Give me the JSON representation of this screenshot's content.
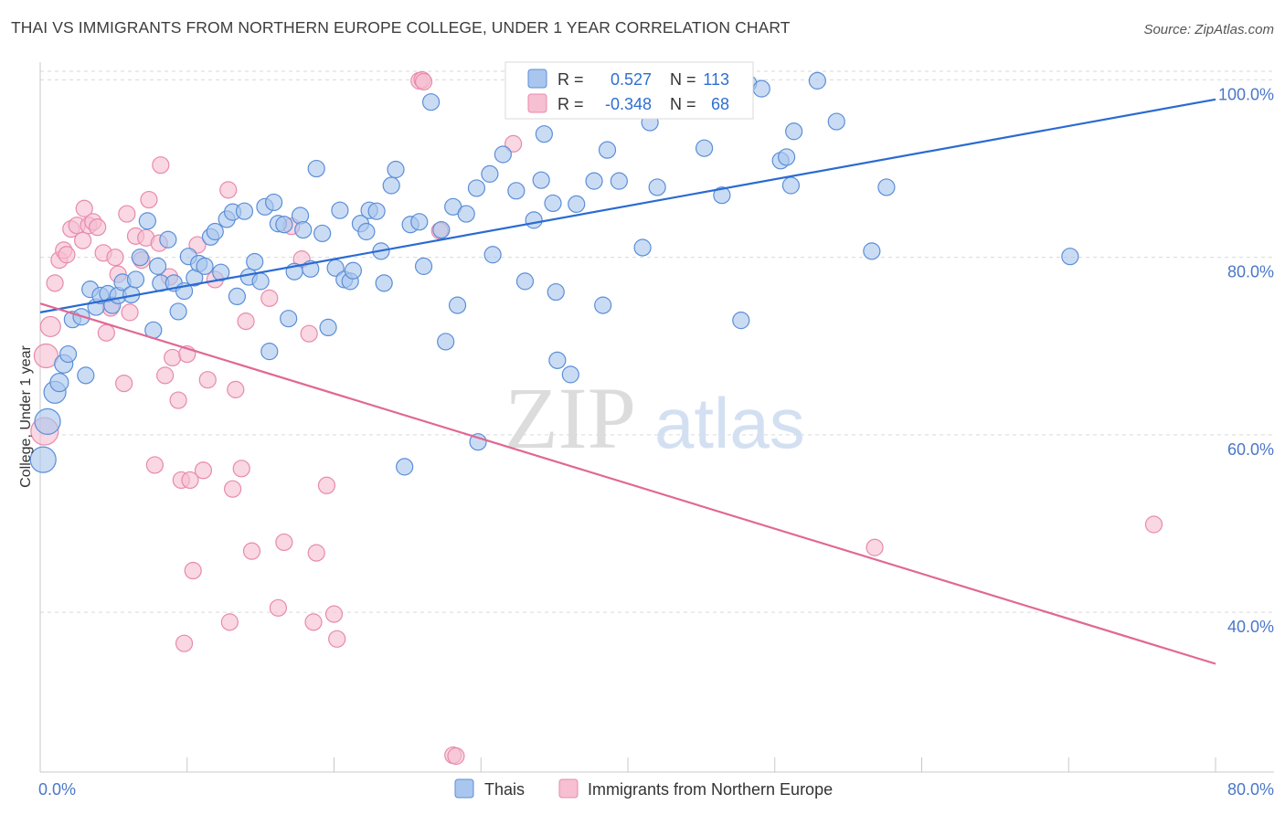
{
  "title": "THAI VS IMMIGRANTS FROM NORTHERN EUROPE COLLEGE, UNDER 1 YEAR CORRELATION CHART",
  "source": "Source: ZipAtlas.com",
  "watermark": {
    "zip": "ZIP",
    "atlas": "atlas"
  },
  "colors": {
    "series1_fill": "#a9c6ee",
    "series1_stroke": "#5b8ed8",
    "series1_line": "#2a6bd1",
    "series2_fill": "#f6bfd2",
    "series2_stroke": "#e88aac",
    "series2_line": "#e06894",
    "axis_label": "#4a77c9",
    "grid": "#d9d9d9"
  },
  "legend": {
    "rows": [
      {
        "r_label": "R =",
        "r_value": "0.527",
        "n_label": "N =",
        "n_value": "113"
      },
      {
        "r_label": "R =",
        "r_value": "-0.348",
        "n_label": "N =",
        "n_value": "68"
      }
    ]
  },
  "chart_data": {
    "type": "scatter",
    "xlabel": "",
    "ylabel": "College, Under 1 year",
    "xlim": [
      0,
      80
    ],
    "ylim": [
      22,
      102
    ],
    "x_tick_labels": [
      "0.0%",
      "80.0%"
    ],
    "y_ticks": [
      40,
      60,
      80,
      100
    ],
    "y_tick_labels": [
      "40.0%",
      "60.0%",
      "80.0%",
      "100.0%"
    ],
    "grid": true,
    "legend_position": "top-center",
    "series": [
      {
        "name": "Thais",
        "trend": {
          "x": [
            0,
            80
          ],
          "y": [
            73.8,
            97.8
          ]
        },
        "points": [
          [
            0.2,
            57.2,
            14
          ],
          [
            0.5,
            61.5,
            14
          ],
          [
            1.0,
            64.8,
            12
          ],
          [
            1.3,
            65.9,
            10
          ],
          [
            1.6,
            68.0,
            10
          ],
          [
            1.9,
            69.1,
            9
          ],
          [
            2.2,
            73.0,
            9
          ],
          [
            2.8,
            73.3,
            9
          ],
          [
            3.1,
            66.7,
            9
          ],
          [
            3.4,
            76.4,
            9
          ],
          [
            3.8,
            74.4,
            9
          ],
          [
            4.1,
            75.7,
            9
          ],
          [
            4.6,
            75.9,
            9
          ],
          [
            4.9,
            74.6,
            9
          ],
          [
            5.3,
            75.7,
            9
          ],
          [
            5.6,
            77.2,
            9
          ],
          [
            6.2,
            75.8,
            9
          ],
          [
            6.5,
            77.5,
            9
          ],
          [
            6.8,
            80.0,
            9
          ],
          [
            7.3,
            84.1,
            9
          ],
          [
            7.7,
            71.8,
            9
          ],
          [
            8.0,
            79.0,
            9
          ],
          [
            8.2,
            77.1,
            9
          ],
          [
            8.7,
            82.0,
            9
          ],
          [
            9.1,
            77.1,
            9
          ],
          [
            9.4,
            73.9,
            9
          ],
          [
            9.8,
            76.2,
            9
          ],
          [
            10.1,
            80.1,
            9
          ],
          [
            10.5,
            77.7,
            9
          ],
          [
            10.8,
            79.3,
            9
          ],
          [
            11.2,
            79.0,
            9
          ],
          [
            11.6,
            82.3,
            9
          ],
          [
            11.9,
            82.9,
            9
          ],
          [
            12.3,
            78.3,
            9
          ],
          [
            12.7,
            84.3,
            9
          ],
          [
            13.1,
            85.1,
            9
          ],
          [
            13.4,
            75.6,
            9
          ],
          [
            13.9,
            85.2,
            9
          ],
          [
            14.2,
            77.8,
            9
          ],
          [
            14.6,
            79.5,
            9
          ],
          [
            15.0,
            77.3,
            9
          ],
          [
            15.3,
            85.7,
            9
          ],
          [
            15.6,
            69.4,
            9
          ],
          [
            15.9,
            86.2,
            9
          ],
          [
            16.2,
            83.8,
            9
          ],
          [
            16.6,
            83.7,
            9
          ],
          [
            16.9,
            73.1,
            9
          ],
          [
            17.3,
            78.4,
            9
          ],
          [
            17.7,
            84.7,
            9
          ],
          [
            17.9,
            83.1,
            9
          ],
          [
            18.4,
            78.7,
            9
          ],
          [
            18.8,
            90.0,
            9
          ],
          [
            19.2,
            82.7,
            9
          ],
          [
            19.6,
            72.1,
            9
          ],
          [
            20.1,
            78.8,
            9
          ],
          [
            20.4,
            85.3,
            9
          ],
          [
            20.7,
            77.5,
            9
          ],
          [
            21.1,
            77.3,
            9
          ],
          [
            21.3,
            78.5,
            9
          ],
          [
            21.8,
            83.8,
            9
          ],
          [
            22.2,
            82.9,
            9
          ],
          [
            22.4,
            85.3,
            9
          ],
          [
            22.9,
            85.2,
            9
          ],
          [
            23.2,
            80.7,
            9
          ],
          [
            23.4,
            77.1,
            9
          ],
          [
            23.9,
            88.1,
            9
          ],
          [
            24.2,
            89.9,
            9
          ],
          [
            24.8,
            56.4,
            9
          ],
          [
            25.2,
            83.7,
            9
          ],
          [
            25.8,
            84.0,
            9
          ],
          [
            26.1,
            79.0,
            9
          ],
          [
            26.6,
            97.5,
            9
          ],
          [
            27.3,
            83.1,
            9
          ],
          [
            27.6,
            70.5,
            9
          ],
          [
            28.1,
            85.7,
            9
          ],
          [
            28.4,
            74.6,
            9
          ],
          [
            29.0,
            84.9,
            9
          ],
          [
            29.8,
            59.2,
            9
          ],
          [
            29.7,
            87.8,
            9
          ],
          [
            30.6,
            89.4,
            9
          ],
          [
            30.8,
            80.3,
            9
          ],
          [
            31.5,
            91.6,
            9
          ],
          [
            32.4,
            87.5,
            9
          ],
          [
            33.0,
            77.3,
            9
          ],
          [
            33.6,
            84.2,
            9
          ],
          [
            34.1,
            88.7,
            9
          ],
          [
            34.3,
            93.9,
            9
          ],
          [
            34.9,
            86.1,
            9
          ],
          [
            35.1,
            76.1,
            9
          ],
          [
            35.2,
            68.4,
            9
          ],
          [
            36.1,
            66.8,
            9
          ],
          [
            36.5,
            86.0,
            9
          ],
          [
            37.7,
            88.6,
            9
          ],
          [
            38.3,
            74.6,
            9
          ],
          [
            38.6,
            92.1,
            9
          ],
          [
            39.4,
            88.6,
            9
          ],
          [
            40.8,
            98.9,
            9
          ],
          [
            41.0,
            81.1,
            9
          ],
          [
            41.5,
            95.2,
            9
          ],
          [
            42.0,
            87.9,
            9
          ],
          [
            43.2,
            99.1,
            9
          ],
          [
            45.2,
            92.3,
            9
          ],
          [
            46.4,
            87.0,
            9
          ],
          [
            47.7,
            72.9,
            9
          ],
          [
            48.2,
            99.6,
            9
          ],
          [
            49.1,
            99.0,
            9
          ],
          [
            50.4,
            90.9,
            9
          ],
          [
            50.8,
            91.3,
            9
          ],
          [
            51.1,
            88.1,
            9
          ],
          [
            51.3,
            94.2,
            9
          ],
          [
            52.9,
            99.9,
            9
          ],
          [
            54.2,
            95.3,
            9
          ],
          [
            56.6,
            80.7,
            9
          ],
          [
            57.6,
            87.9,
            9
          ],
          [
            70.1,
            80.1,
            9
          ]
        ]
      },
      {
        "name": "Immigrants from Northern Europe",
        "trend": {
          "x": [
            0,
            80
          ],
          "y": [
            74.8,
            34.2
          ]
        },
        "points": [
          [
            0.3,
            60.4,
            15
          ],
          [
            0.4,
            68.9,
            13
          ],
          [
            0.7,
            72.2,
            11
          ],
          [
            1.0,
            77.1,
            9
          ],
          [
            1.3,
            79.7,
            9
          ],
          [
            1.6,
            80.8,
            9
          ],
          [
            1.8,
            80.3,
            9
          ],
          [
            2.1,
            83.2,
            9
          ],
          [
            2.5,
            83.6,
            9
          ],
          [
            2.9,
            81.9,
            9
          ],
          [
            3.0,
            85.5,
            9
          ],
          [
            3.3,
            83.6,
            9
          ],
          [
            3.6,
            84.0,
            9
          ],
          [
            3.9,
            83.4,
            9
          ],
          [
            4.3,
            80.5,
            9
          ],
          [
            4.5,
            71.5,
            9
          ],
          [
            4.8,
            74.3,
            9
          ],
          [
            5.1,
            80.0,
            9
          ],
          [
            5.3,
            78.1,
            9
          ],
          [
            5.7,
            65.8,
            9
          ],
          [
            5.9,
            84.9,
            9
          ],
          [
            6.1,
            73.8,
            9
          ],
          [
            6.5,
            82.4,
            9
          ],
          [
            6.9,
            79.7,
            9
          ],
          [
            7.2,
            82.2,
            9
          ],
          [
            7.4,
            86.5,
            9
          ],
          [
            7.8,
            56.6,
            9
          ],
          [
            8.1,
            81.6,
            9
          ],
          [
            8.2,
            90.4,
            9
          ],
          [
            8.5,
            66.7,
            9
          ],
          [
            8.8,
            77.8,
            9
          ],
          [
            9.0,
            68.7,
            9
          ],
          [
            9.4,
            63.9,
            9
          ],
          [
            9.6,
            54.9,
            9
          ],
          [
            9.8,
            36.5,
            9
          ],
          [
            10.0,
            69.1,
            9
          ],
          [
            10.2,
            54.9,
            9
          ],
          [
            10.4,
            44.7,
            9
          ],
          [
            10.7,
            81.4,
            9
          ],
          [
            11.1,
            56.0,
            9
          ],
          [
            11.4,
            66.2,
            9
          ],
          [
            11.9,
            77.5,
            9
          ],
          [
            12.8,
            87.6,
            9
          ],
          [
            12.9,
            38.9,
            9
          ],
          [
            13.1,
            53.9,
            9
          ],
          [
            13.3,
            65.1,
            9
          ],
          [
            13.7,
            56.2,
            9
          ],
          [
            14.0,
            72.8,
            9
          ],
          [
            14.4,
            46.9,
            9
          ],
          [
            15.6,
            75.4,
            9
          ],
          [
            16.2,
            40.5,
            9
          ],
          [
            16.6,
            47.9,
            9
          ],
          [
            17.1,
            83.5,
            9
          ],
          [
            17.8,
            79.8,
            9
          ],
          [
            18.3,
            71.4,
            9
          ],
          [
            18.6,
            38.9,
            9
          ],
          [
            18.8,
            46.7,
            9
          ],
          [
            19.5,
            54.3,
            9
          ],
          [
            20.0,
            39.8,
            9
          ],
          [
            20.2,
            37.0,
            9
          ],
          [
            25.8,
            99.9,
            9
          ],
          [
            26.0,
            100.0,
            9
          ],
          [
            26.1,
            99.8,
            9
          ],
          [
            27.2,
            83.0,
            9
          ],
          [
            28.1,
            23.9,
            9
          ],
          [
            28.3,
            23.8,
            9
          ],
          [
            32.2,
            92.8,
            9
          ],
          [
            56.8,
            47.3,
            9
          ],
          [
            75.8,
            49.9,
            9
          ]
        ]
      }
    ]
  },
  "bottom_legend": {
    "items": [
      {
        "label": "Thais"
      },
      {
        "label": "Immigrants from Northern Europe"
      }
    ]
  }
}
